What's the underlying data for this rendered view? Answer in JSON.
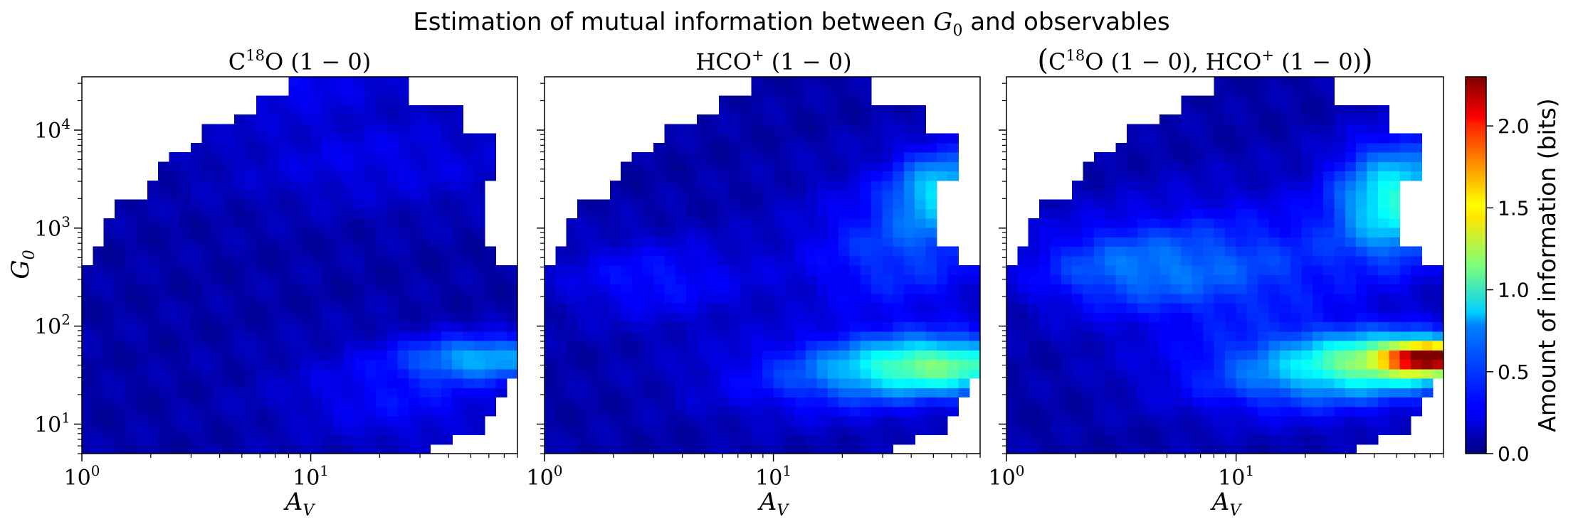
{
  "figure": {
    "title_text": "Estimation of mutual information between ",
    "title_math": "G",
    "title_math_sub": "0",
    "title_suffix": " and observables"
  },
  "chart_data": [
    {
      "type": "heatmap",
      "title": "C18O (1 − 0)",
      "title_parts": {
        "a": "C",
        "a_sup": "18",
        "b": "O (1 − 0)"
      },
      "xlabel": "A",
      "xlabel_sub": "V",
      "ylabel": "G",
      "ylabel_sub": "0",
      "x_scale": "log",
      "y_scale": "log",
      "xlim": [
        1,
        80
      ],
      "ylim": [
        5,
        35000
      ],
      "xticks": [
        {
          "base": "10",
          "exp": "0",
          "value": 1
        },
        {
          "base": "10",
          "exp": "1",
          "value": 10
        }
      ],
      "yticks": [
        {
          "base": "10",
          "exp": "1",
          "value": 10
        },
        {
          "base": "10",
          "exp": "2",
          "value": 100
        },
        {
          "base": "10",
          "exp": "3",
          "value": 1000
        },
        {
          "base": "10",
          "exp": "4",
          "value": 10000
        }
      ],
      "highlights": [
        {
          "x": 60,
          "y": 48,
          "value": 0.7,
          "sx": 0.25,
          "sy": 0.16
        },
        {
          "x": 25,
          "y": 20,
          "value": 0.32,
          "sx": 0.35,
          "sy": 0.35
        },
        {
          "x": 20,
          "y": 5000,
          "value": 0.25,
          "sx": 0.5,
          "sy": 0.35
        },
        {
          "x": 8,
          "y": 35000,
          "value": 0.3,
          "sx": 0.3,
          "sy": 0.25
        }
      ]
    },
    {
      "type": "heatmap",
      "title": "HCO+ (1 − 0)",
      "title_parts": {
        "a": "HCO",
        "a_sup": "+",
        "b": " (1 − 0)"
      },
      "xlabel": "A",
      "xlabel_sub": "V",
      "x_scale": "log",
      "y_scale": "log",
      "xlim": [
        1,
        80
      ],
      "ylim": [
        5,
        35000
      ],
      "xticks": [
        {
          "base": "10",
          "exp": "0",
          "value": 1
        },
        {
          "base": "10",
          "exp": "1",
          "value": 10
        }
      ],
      "highlights": [
        {
          "x": 55,
          "y": 40,
          "value": 1.05,
          "sx": 0.3,
          "sy": 0.2
        },
        {
          "x": 55,
          "y": 2500,
          "value": 0.75,
          "sx": 0.15,
          "sy": 0.3
        },
        {
          "x": 20,
          "y": 30,
          "value": 0.45,
          "sx": 0.4,
          "sy": 0.3
        },
        {
          "x": 35,
          "y": 600,
          "value": 0.45,
          "sx": 0.3,
          "sy": 0.5
        },
        {
          "x": 3,
          "y": 300,
          "value": 0.35,
          "sx": 0.3,
          "sy": 0.3
        }
      ]
    },
    {
      "type": "heatmap",
      "title": "(C18O (1 − 0), HCO+ (1 − 0))",
      "title_parts": {
        "p1": "(",
        "a": "C",
        "a_sup": "18",
        "b": "O (1 − 0), HCO",
        "b_sup": "+",
        "c": " (1 − 0)",
        "p2": ")"
      },
      "xlabel": "A",
      "xlabel_sub": "V",
      "x_scale": "log",
      "y_scale": "log",
      "xlim": [
        1,
        80
      ],
      "ylim": [
        5,
        35000
      ],
      "xticks": [
        {
          "base": "10",
          "exp": "0",
          "value": 1
        },
        {
          "base": "10",
          "exp": "1",
          "value": 10
        }
      ],
      "highlights": [
        {
          "x": 70,
          "y": 48,
          "value": 1.8,
          "sx": 0.12,
          "sy": 0.1
        },
        {
          "x": 50,
          "y": 45,
          "value": 1.1,
          "sx": 0.3,
          "sy": 0.2
        },
        {
          "x": 50,
          "y": 2000,
          "value": 1.0,
          "sx": 0.18,
          "sy": 0.4
        },
        {
          "x": 20,
          "y": 30,
          "value": 0.55,
          "sx": 0.4,
          "sy": 0.3
        },
        {
          "x": 10,
          "y": 400,
          "value": 0.45,
          "sx": 0.45,
          "sy": 0.5
        },
        {
          "x": 3,
          "y": 400,
          "value": 0.4,
          "sx": 0.3,
          "sy": 0.3
        }
      ]
    }
  ],
  "colorbar": {
    "label": "Amount of information (bits)",
    "colormap": "jet",
    "range": [
      0,
      2.3
    ],
    "ticks": [
      "0.0",
      "0.5",
      "1.0",
      "1.5",
      "2.0"
    ],
    "tick_values": [
      0.0,
      0.5,
      1.0,
      1.5,
      2.0
    ]
  }
}
